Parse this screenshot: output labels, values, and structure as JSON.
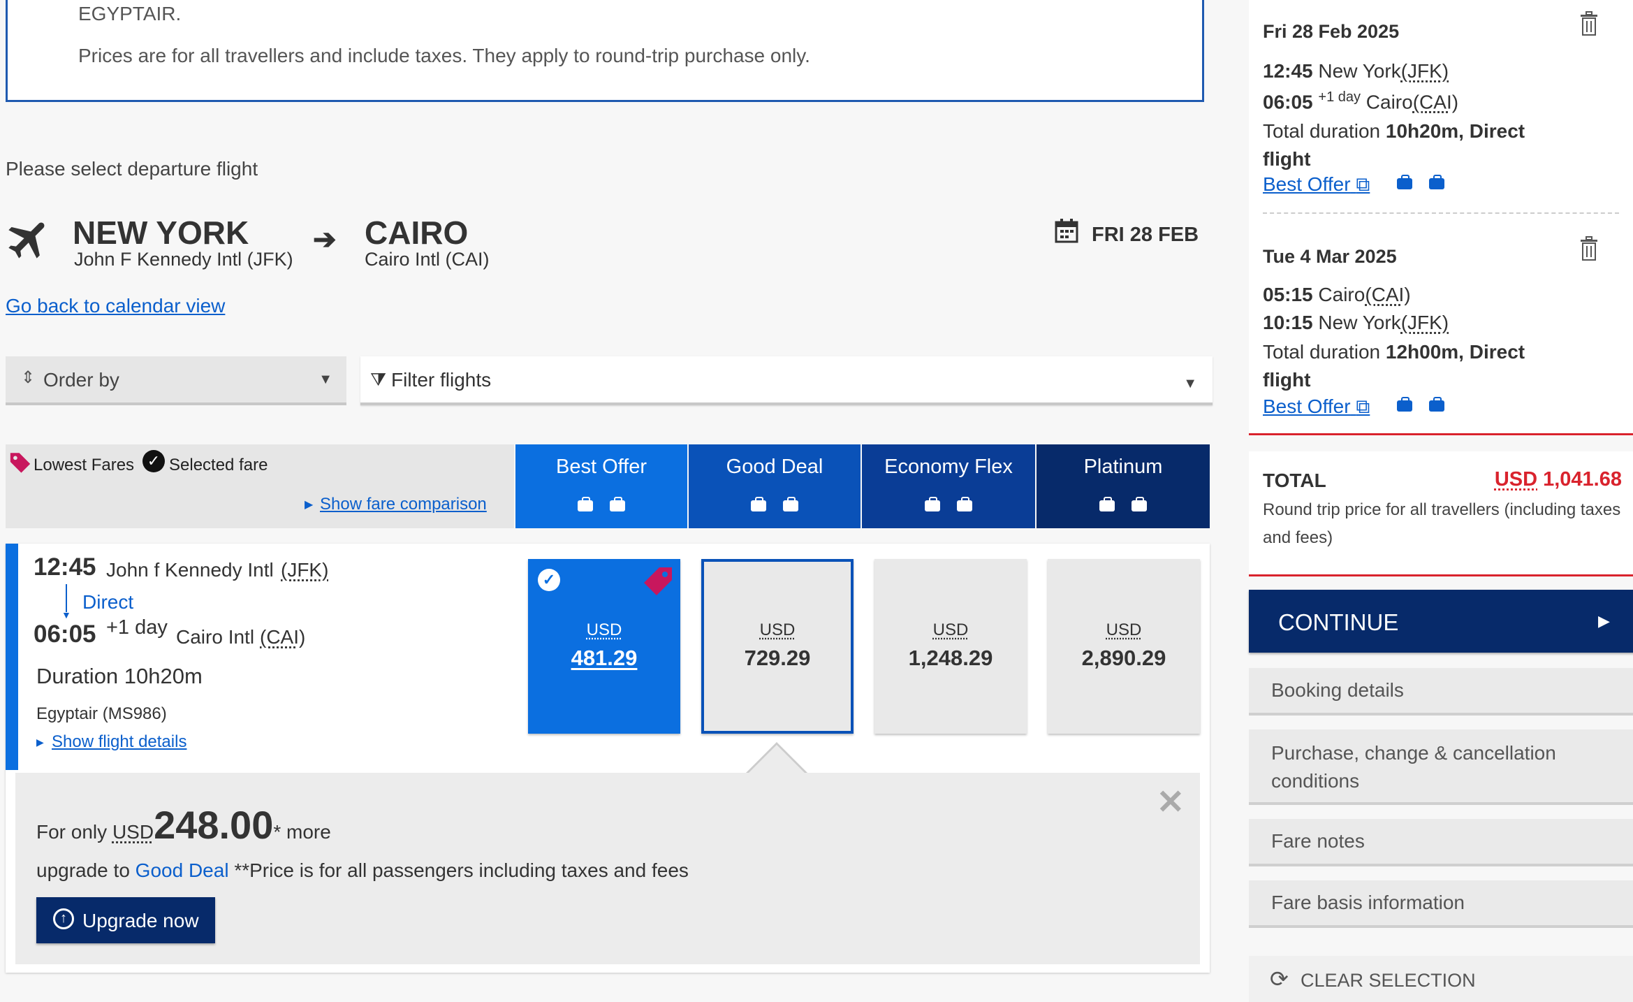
{
  "info_box": {
    "line1": "EGYPTAIR.",
    "line2": "Prices are for all travellers and include taxes. They apply to round-trip purchase only."
  },
  "select_prompt": "Please select departure flight",
  "route": {
    "origin_city": "NEW YORK",
    "origin_airport": "John F Kennedy Intl (JFK)",
    "dest_city": "CAIRO",
    "dest_airport": "Cairo Intl (CAI)",
    "date": "FRI 28 FEB"
  },
  "calendar_link": "Go back to calendar view",
  "order_by": "Order by",
  "filter": "Filter flights",
  "legend": {
    "lowest": "Lowest Fares",
    "selected": "Selected fare",
    "compare": "Show fare comparison"
  },
  "fares": [
    {
      "name": "Best Offer",
      "color": "#0b6fe0"
    },
    {
      "name": "Good Deal",
      "color": "#0a52b8"
    },
    {
      "name": "Economy Flex",
      "color": "#0a3d96"
    },
    {
      "name": "Platinum",
      "color": "#072a6a"
    }
  ],
  "flight": {
    "dep_time": "12:45",
    "dep_airport": "John f Kennedy Intl",
    "dep_code": "(JFK)",
    "stops": "Direct",
    "arr_time": "06:05",
    "plus_day": "+1 day",
    "arr_airport": "Cairo Intl",
    "arr_code": "(CAI)",
    "duration": "Duration 10h20m",
    "carrier": "Egyptair (MS986)",
    "details_link": "Show flight details"
  },
  "prices": [
    {
      "currency": "USD",
      "amount": "481.29"
    },
    {
      "currency": "USD",
      "amount": "729.29"
    },
    {
      "currency": "USD",
      "amount": "1,248.29"
    },
    {
      "currency": "USD",
      "amount": "2,890.29"
    }
  ],
  "upsell": {
    "pre": "For only ",
    "currency": "USD",
    "amount": "248.00",
    "post": "* more",
    "upgrade_to": "upgrade to ",
    "fare_name": "Good Deal",
    "note": " **Price is for all passengers including taxes and fees",
    "button": "Upgrade now"
  },
  "summary": {
    "outbound": {
      "date": "Fri 28 Feb 2025",
      "dep_time": "12:45",
      "dep_city": "New York",
      "dep_code": "(JFK)",
      "arr_time": "06:05",
      "plus_day": "+1 day",
      "arr_city": "Cairo",
      "arr_code": "(CAI)",
      "duration_label": "Total duration ",
      "duration": "10h20m, Direct",
      "duration_tail": "flight",
      "fare": "Best Offer"
    },
    "return": {
      "date": "Tue 4 Mar 2025",
      "dep_time": "05:15",
      "dep_city": "Cairo",
      "dep_code": "(CAI)",
      "arr_time": "10:15",
      "arr_city": "New York",
      "arr_code": "(JFK)",
      "duration_label": "Total duration ",
      "duration": "12h00m, Direct",
      "duration_tail": "flight",
      "fare": "Best Offer"
    },
    "total_label": "TOTAL",
    "total_currency": "USD",
    "total_amount": "1,041.68",
    "total_note": "Round trip price for all travellers (including taxes and fees)",
    "continue": "CONTINUE",
    "menu": [
      "Booking details",
      "Purchase, change & cancellation conditions",
      "Fare notes",
      "Fare basis information"
    ],
    "clear": "CLEAR SELECTION"
  }
}
